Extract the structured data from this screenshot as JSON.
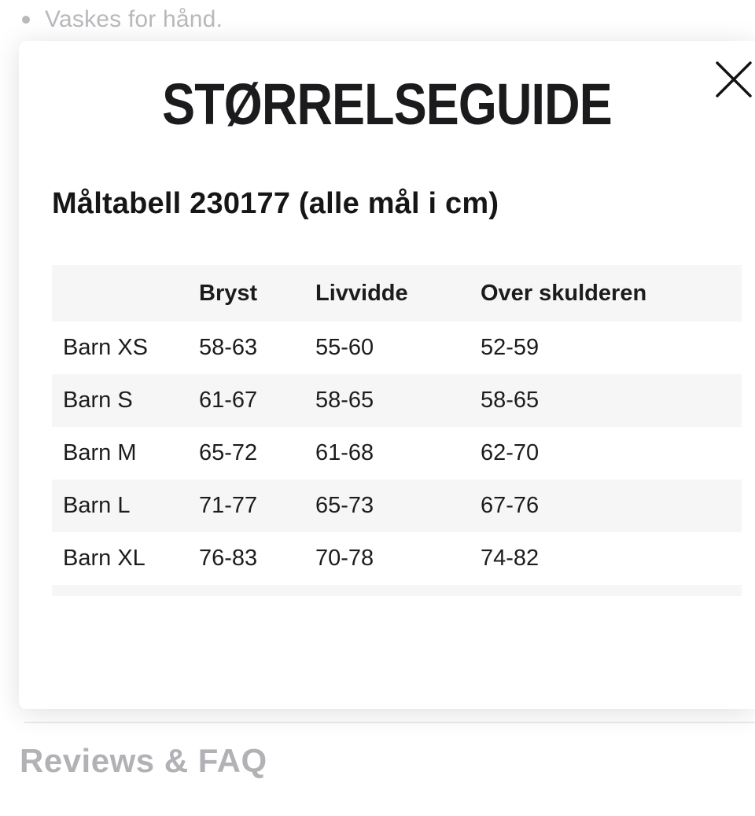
{
  "page": {
    "care_note": "Vaskes for hånd.",
    "reviews_heading": "Reviews & FAQ"
  },
  "modal": {
    "title": "STØRRELSEGUIDE",
    "subtitle": "Måltabell 230177 (alle mål i cm)",
    "table": {
      "columns": [
        "",
        "Bryst",
        "Livvidde",
        "Over skulderen"
      ],
      "rows": [
        {
          "cells": [
            "Barn XS",
            "58-63",
            "55-60",
            "52-59"
          ]
        },
        {
          "cells": [
            "Barn S",
            "61-67",
            "58-65",
            "58-65"
          ]
        },
        {
          "cells": [
            "Barn M",
            "65-72",
            "61-68",
            "62-70"
          ]
        },
        {
          "cells": [
            "Barn L",
            "71-77",
            "65-73",
            "67-76"
          ]
        },
        {
          "cells": [
            "Barn XL",
            "76-83",
            "70-78",
            "74-82"
          ]
        }
      ]
    }
  },
  "icons": {
    "close": "✕"
  },
  "colors": {
    "text_primary": "#161616",
    "text_dimmed": "#b9b9bd",
    "heading_dimmed": "#b2b2b6",
    "table_stripe": "#f6f6f6",
    "divider": "#ebebed",
    "modal_bg": "#ffffff"
  }
}
